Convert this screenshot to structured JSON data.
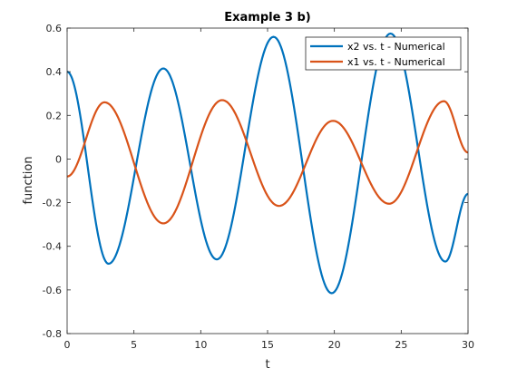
{
  "chart_data": {
    "type": "line",
    "title": "Example 3 b)",
    "xlabel": "t",
    "ylabel": "function",
    "xlim": [
      0,
      30
    ],
    "ylim": [
      -0.8,
      0.6
    ],
    "xticks": [
      0,
      5,
      10,
      15,
      20,
      25,
      30
    ],
    "yticks": [
      0.6,
      0.4,
      0.2,
      0,
      -0.2,
      -0.4,
      -0.6,
      -0.8
    ],
    "grid": false,
    "legend_position": "top-right",
    "series": [
      {
        "name": "x2 vs. t - Numerical",
        "color": "#0072BD",
        "points": [
          [
            0,
            0.4
          ],
          [
            3.1,
            -0.48
          ],
          [
            7.2,
            0.415
          ],
          [
            11.2,
            -0.46
          ],
          [
            15.45,
            0.56
          ],
          [
            19.8,
            -0.615
          ],
          [
            24.2,
            0.575
          ],
          [
            28.3,
            -0.47
          ],
          [
            30,
            -0.16
          ]
        ]
      },
      {
        "name": "x1 vs. t - Numerical",
        "color": "#D95319",
        "points": [
          [
            0,
            -0.08
          ],
          [
            2.8,
            0.26
          ],
          [
            7.2,
            -0.295
          ],
          [
            11.6,
            0.27
          ],
          [
            15.85,
            -0.215
          ],
          [
            19.9,
            0.175
          ],
          [
            24.1,
            -0.205
          ],
          [
            28.2,
            0.265
          ],
          [
            30,
            0.03
          ]
        ]
      }
    ]
  }
}
